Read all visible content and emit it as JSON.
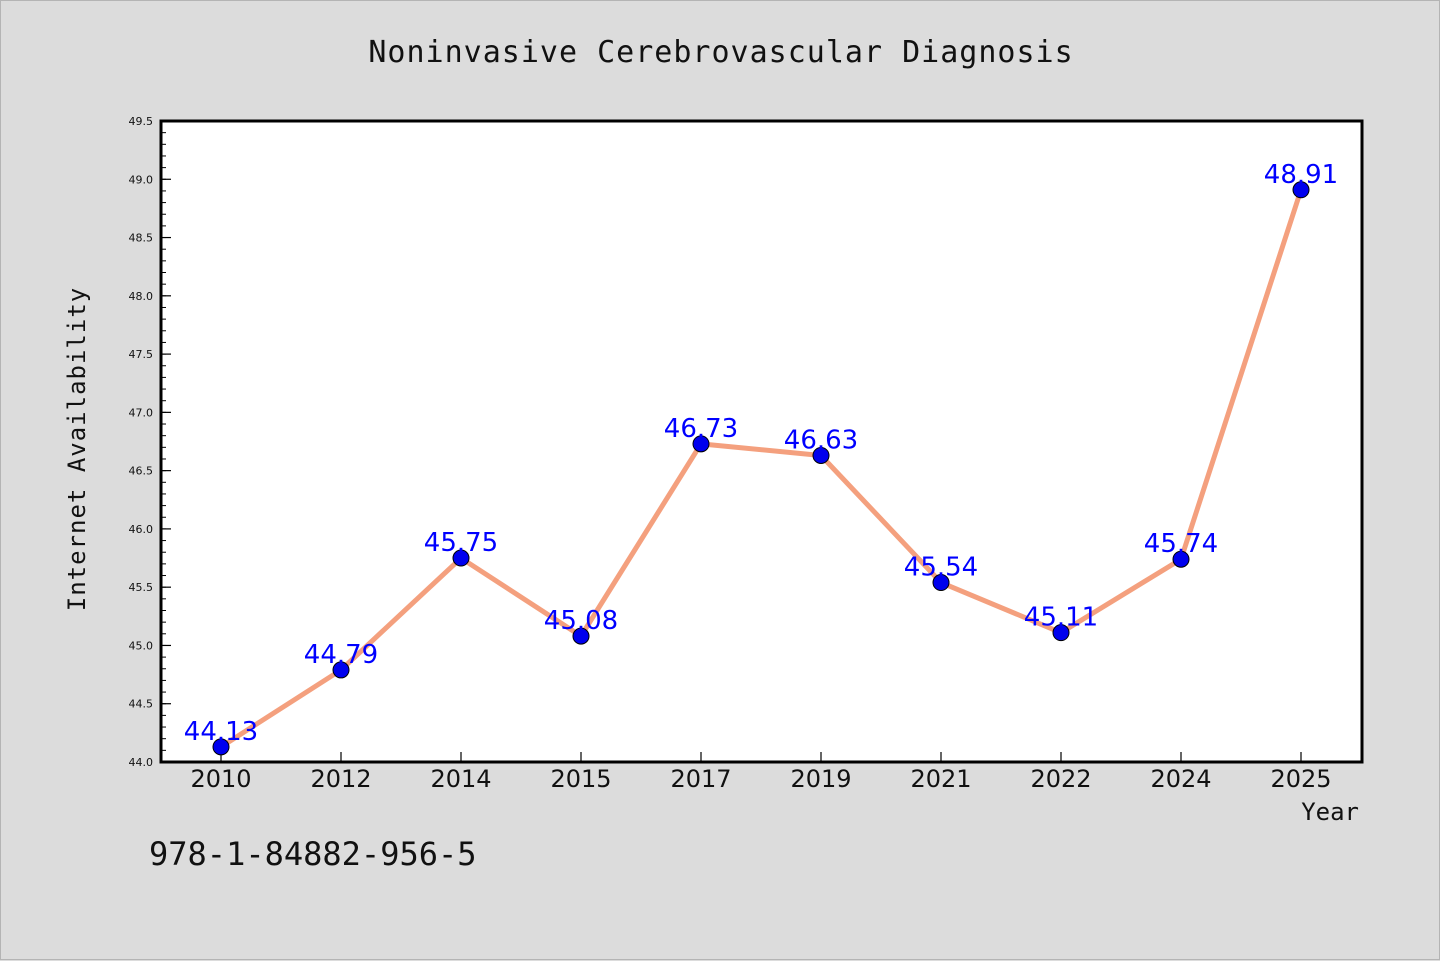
{
  "chart_data": {
    "type": "line",
    "title": "Noninvasive Cerebrovascular Diagnosis",
    "xlabel": "Year",
    "ylabel": "Internet Availability",
    "categories": [
      "2010",
      "2012",
      "2014",
      "2015",
      "2017",
      "2019",
      "2021",
      "2022",
      "2024",
      "2025"
    ],
    "series": [
      {
        "values": [
          44.13,
          44.79,
          45.75,
          45.08,
          46.73,
          46.63,
          45.54,
          45.11,
          45.74,
          48.91
        ],
        "data_labels": [
          "44.13",
          "44.79",
          "45.75",
          "45.08",
          "46.73",
          "46.63",
          "45.54",
          "45.11",
          "45.74",
          "48.91"
        ],
        "line_color": "#f4a07e",
        "marker_color": "#0000ee",
        "label_color": "#0000ff"
      }
    ],
    "ylim": [
      44.0,
      49.5
    ],
    "ytick_labels": [
      "44.0",
      "44.5",
      "45.0",
      "45.5",
      "46.0",
      "46.5",
      "47.0",
      "47.5",
      "48.0",
      "48.5",
      "49.0",
      "49.5"
    ],
    "grid": false,
    "legend": "none",
    "background_color": "#dcdcdc",
    "plot_background": "#ffffff"
  },
  "footnote": "978-1-84882-956-5"
}
